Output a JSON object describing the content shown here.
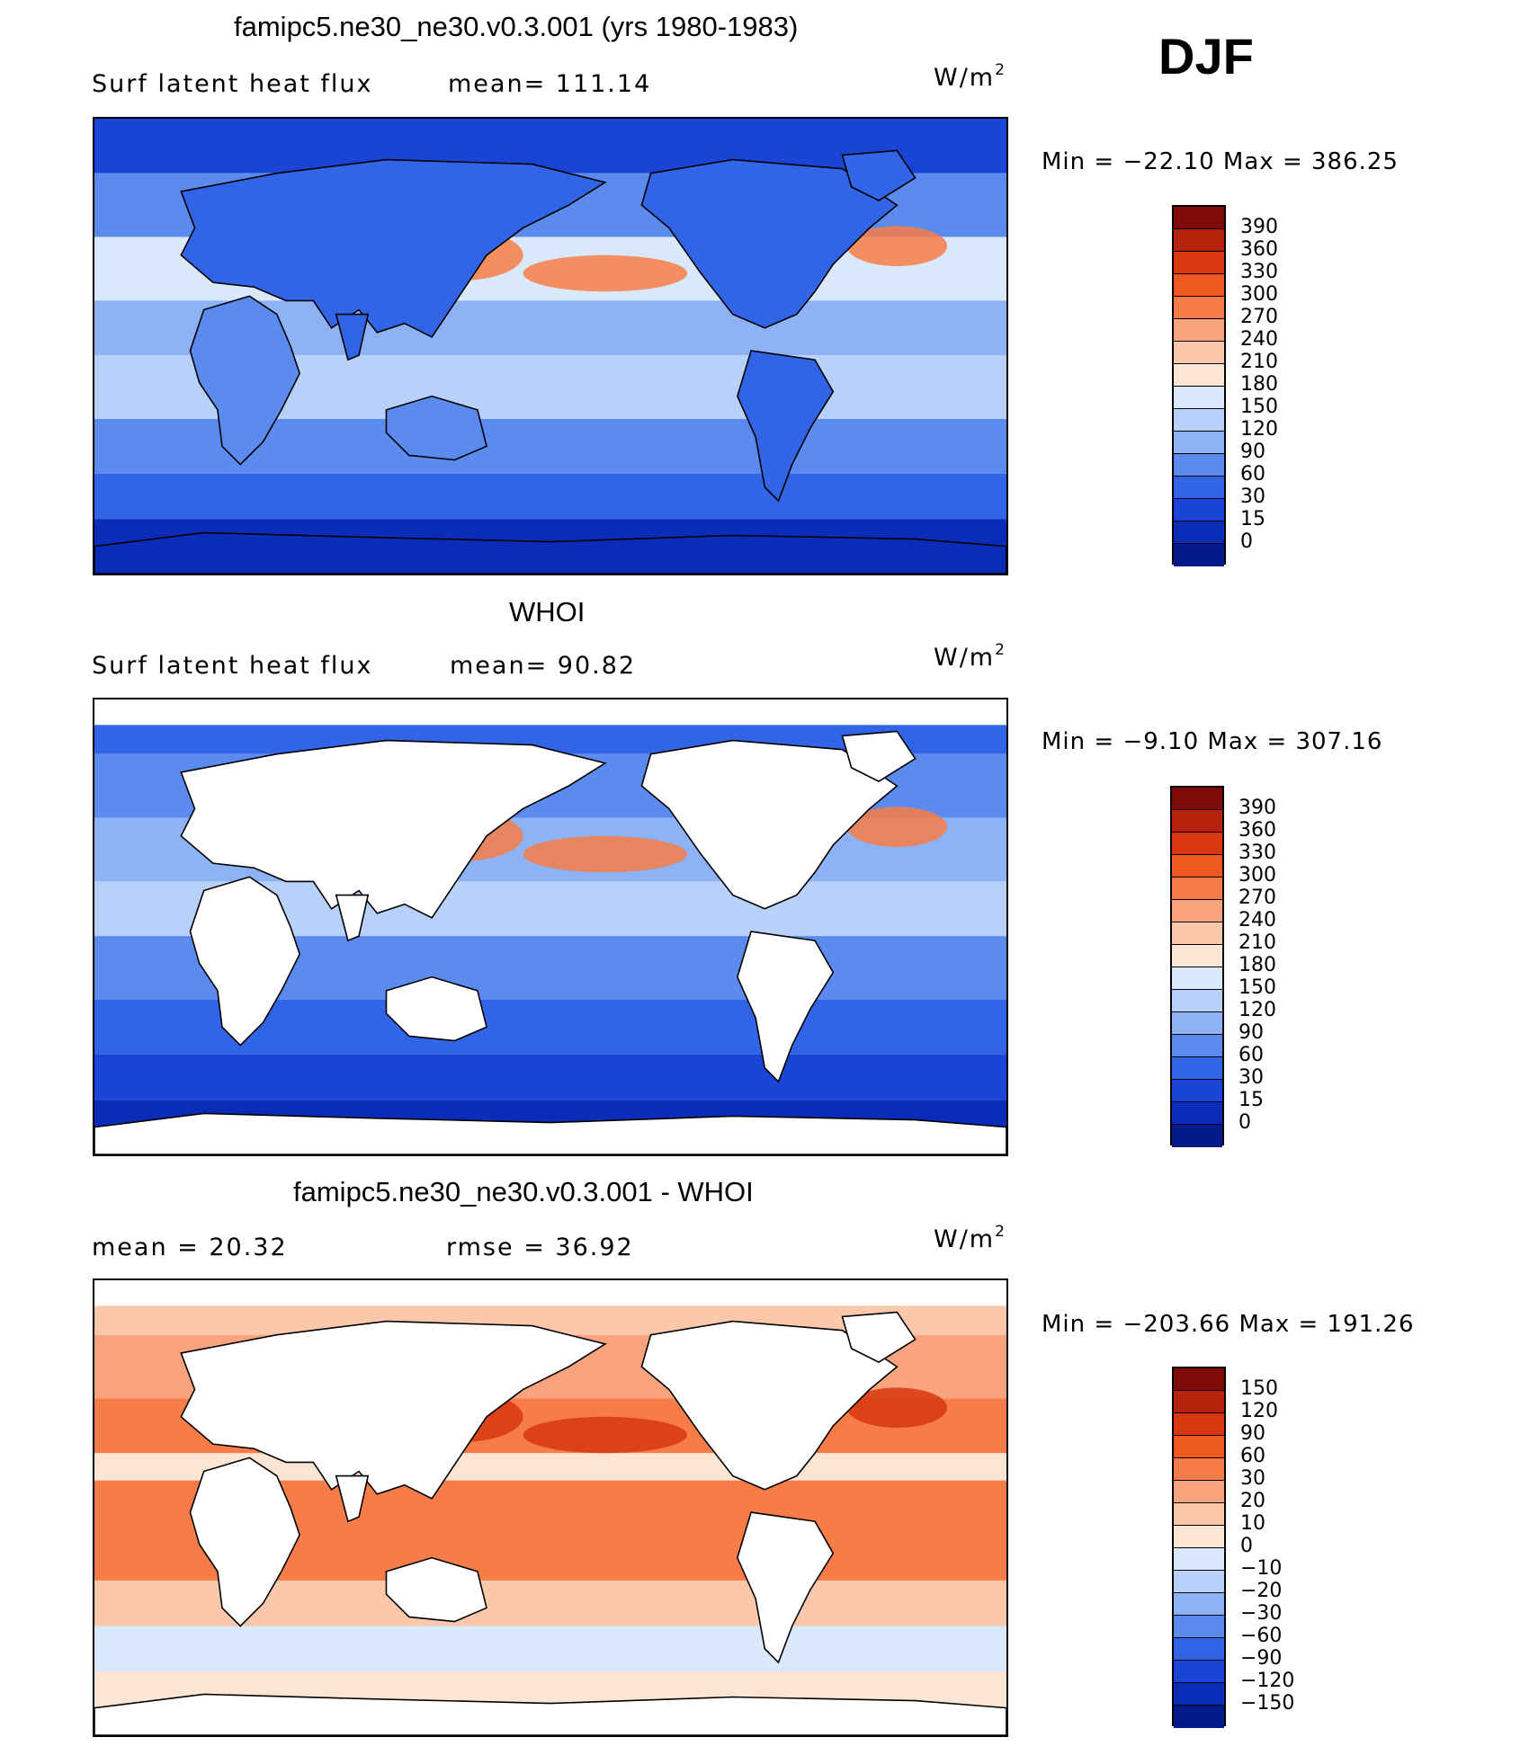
{
  "season": "DJF",
  "panels": [
    {
      "id": "model",
      "title": "famipc5.ne30_ne30.v0.3.001 (yrs 1980-1983)",
      "left_label": "Surf  latent  heat  flux",
      "mid_label": "mean=  111.14",
      "units": "W/m",
      "units_sup": "2",
      "minmax": "Min  =  −22.10  Max  =  386.25",
      "colorbar": {
        "labels": [
          "390",
          "360",
          "330",
          "300",
          "270",
          "240",
          "210",
          "180",
          "150",
          "120",
          "90",
          "60",
          "30",
          "15",
          "0"
        ],
        "colors": [
          "#7e0a0a",
          "#b5230c",
          "#d8380f",
          "#f05a1f",
          "#f77c47",
          "#f9a37f",
          "#fbc8ac",
          "#fde5d4",
          "#d9e8fb",
          "#b8d1fa",
          "#8db2f5",
          "#5b8bee",
          "#3164e6",
          "#1a44d6",
          "#0b2cb8",
          "#051a8a"
        ]
      },
      "palette": {
        "land": "#ffffff",
        "ocean_deep": "#1a44d6",
        "warm": "#f77c47",
        "pale": "#b8d1fa"
      },
      "land_filled": true
    },
    {
      "id": "obs",
      "title": "WHOI",
      "left_label": "Surf  latent  heat  flux",
      "mid_label": "mean=   90.82",
      "units": "W/m",
      "units_sup": "2",
      "minmax": "Min  =   −9.10  Max  =  307.16",
      "colorbar": {
        "labels": [
          "390",
          "360",
          "330",
          "300",
          "270",
          "240",
          "210",
          "180",
          "150",
          "120",
          "90",
          "60",
          "30",
          "15",
          "0"
        ],
        "colors": [
          "#7e0a0a",
          "#b5230c",
          "#d8380f",
          "#f05a1f",
          "#f77c47",
          "#f9a37f",
          "#fbc8ac",
          "#fde5d4",
          "#d9e8fb",
          "#b8d1fa",
          "#8db2f5",
          "#5b8bee",
          "#3164e6",
          "#1a44d6",
          "#0b2cb8",
          "#051a8a"
        ]
      },
      "palette": {
        "land": "#ffffff",
        "ocean_deep": "#3164e6",
        "warm": "#f9a37f",
        "pale": "#b8d1fa"
      },
      "land_filled": false
    },
    {
      "id": "diff",
      "title": "famipc5.ne30_ne30.v0.3.001 - WHOI",
      "left_label": "mean  =    20.32",
      "mid_label": "rmse  =    36.92",
      "units": "W/m",
      "units_sup": "2",
      "minmax": "Min  =  −203.66  Max  =  191.26",
      "colorbar": {
        "labels": [
          "150",
          "120",
          "90",
          "60",
          "30",
          "20",
          "10",
          "0",
          "−10",
          "−20",
          "−30",
          "−60",
          "−90",
          "−120",
          "−150"
        ],
        "colors": [
          "#7e0a0a",
          "#b5230c",
          "#d8380f",
          "#f05a1f",
          "#f77c47",
          "#f9a37f",
          "#fbc8ac",
          "#fde5d4",
          "#d9e8fb",
          "#b8d1fa",
          "#8db2f5",
          "#5b8bee",
          "#3164e6",
          "#1a44d6",
          "#0b2cb8",
          "#051a8a"
        ]
      },
      "palette": {
        "land": "#ffffff",
        "ocean_deep": "#f77c47",
        "warm": "#d8380f",
        "pale": "#fde5d4"
      },
      "land_filled": false
    }
  ]
}
